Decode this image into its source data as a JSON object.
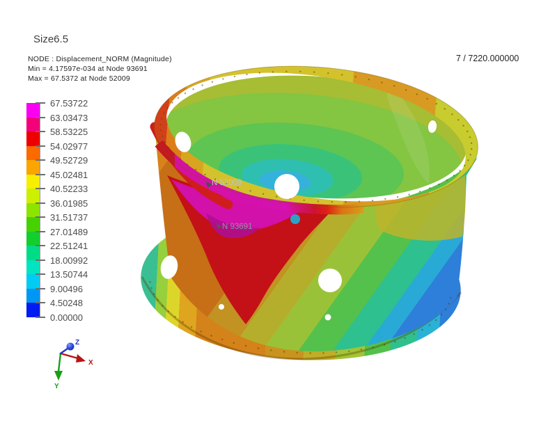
{
  "header": {
    "title": "Size6.5",
    "result_type_line": "NODE : Displacement_NORM (Magnitude)",
    "min_line": "Min = 4.17597e-034 at Node 93691",
    "max_line": "Max = 67.5372 at Node 52009"
  },
  "frame_indicator": "7 / 7220.000000",
  "legend": {
    "tick_labels": [
      "67.53722",
      "63.03473",
      "58.53225",
      "54.02977",
      "49.52729",
      "45.02481",
      "40.52233",
      "36.01985",
      "31.51737",
      "27.01489",
      "22.51241",
      "18.00992",
      "13.50744",
      "9.00496",
      "4.50248",
      "0.00000"
    ],
    "band_colors_top_to_bottom": [
      "#fa00f2",
      "#f4007a",
      "#ee0000",
      "#fa6a00",
      "#faa500",
      "#f8ee00",
      "#ccf000",
      "#8ce400",
      "#46d200",
      "#12cf2e",
      "#00dc86",
      "#00e4c0",
      "#00ccf4",
      "#0096f4",
      "#001cf0"
    ]
  },
  "model": {
    "node_label_max": "N 52009",
    "node_label_min": "N 93691"
  },
  "triad": {
    "x": "X",
    "y": "Y",
    "z": "Z"
  },
  "colors": {
    "background": "#ffffff",
    "max_zone": "#d210aa",
    "min_zone": "#2e7fda",
    "node_marker_dot": "#2aa2c8"
  }
}
